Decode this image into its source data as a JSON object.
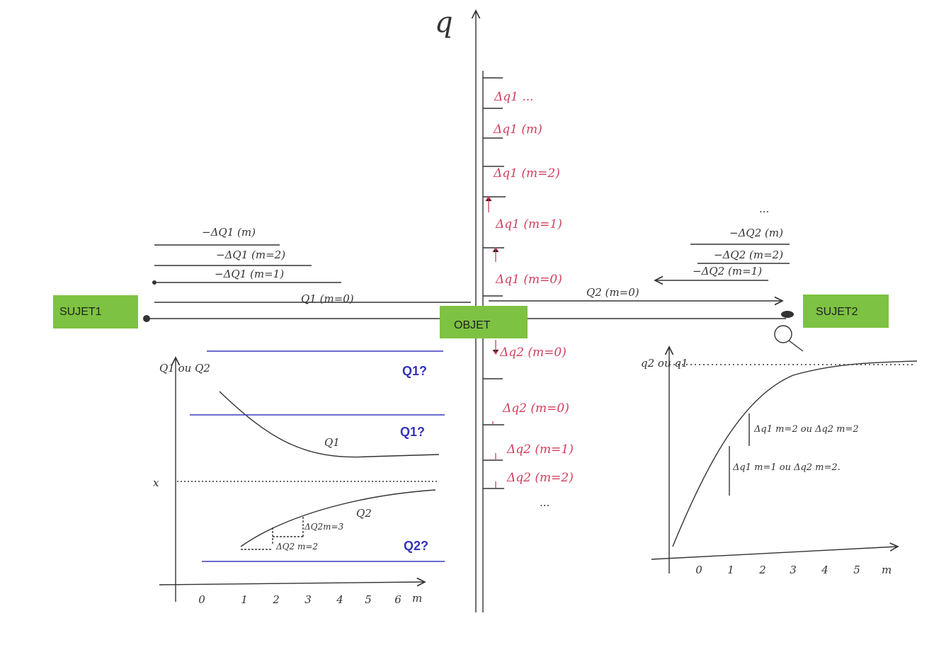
{
  "labels": {
    "sujet1": "SUJET1",
    "objet": "OBJET",
    "sujet2": "SUJET2"
  },
  "axis_label": "q",
  "q_steps": [
    "Δq1 ...",
    "Δq1 (m)",
    "Δq1 (m=2)",
    "Δq1 (m=1)",
    "Δq1 (m=0)",
    "Δq2 (m=0)",
    "Δq2 (m=0)",
    "Δq2 (m=1)",
    "Δq2 (m=2)",
    "..."
  ],
  "left_levels": [
    "−ΔQ1 (m)",
    "−ΔQ1 (m=2)",
    "−ΔQ1 (m=1)",
    "Q1 (m=0)"
  ],
  "right_levels": [
    "...",
    "−ΔQ2 (m)",
    "−ΔQ2 (m=2)",
    "−ΔQ2 (m=1)",
    "Q2 (m=0)"
  ],
  "left_graph": {
    "y_label": "Q1 ou Q2",
    "x_mark": "x",
    "curve1": "Q1",
    "curve2": "Q2",
    "step3": "ΔQ2m=3",
    "step2": "ΔQ2 m=2",
    "questions": [
      "Q1?",
      "Q1?",
      "Q2?"
    ],
    "xticks": [
      0,
      1,
      2,
      3,
      4,
      5,
      6
    ],
    "x_label": "m"
  },
  "right_graph": {
    "y_label": "q2 ou q1",
    "step2": "Δq1 m=2 ou Δq2 m=2",
    "step1": "Δq1 m=1 ou Δq2 m=2.",
    "xticks": [
      0,
      1,
      2,
      3,
      4,
      5
    ],
    "x_label": "m"
  }
}
